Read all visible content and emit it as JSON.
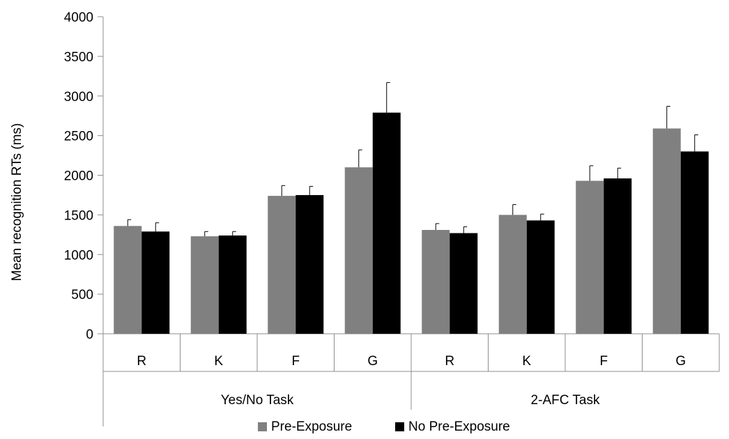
{
  "chart_data": {
    "type": "bar",
    "ylabel": "Mean recognition RTs (ms)",
    "ylim": [
      0,
      4000
    ],
    "yticks": [
      0,
      500,
      1000,
      1500,
      2000,
      2500,
      3000,
      3500,
      4000
    ],
    "grid": false,
    "legend_position": "bottom",
    "groups": [
      {
        "label": "Yes/No Task",
        "categories": [
          "R",
          "K",
          "F",
          "G"
        ]
      },
      {
        "label": "2-AFC Task",
        "categories": [
          "R",
          "K",
          "F",
          "G"
        ]
      }
    ],
    "series": [
      {
        "name": "Pre-Exposure",
        "color": "#808080",
        "values": [
          1360,
          1230,
          1740,
          2100,
          1310,
          1500,
          1930,
          2590
        ],
        "errors": [
          80,
          60,
          130,
          220,
          80,
          130,
          190,
          280
        ]
      },
      {
        "name": "No Pre-Exposure",
        "color": "#000000",
        "values": [
          1290,
          1240,
          1750,
          2790,
          1270,
          1430,
          1960,
          2300
        ],
        "errors": [
          110,
          50,
          110,
          380,
          80,
          80,
          130,
          210
        ]
      }
    ]
  }
}
